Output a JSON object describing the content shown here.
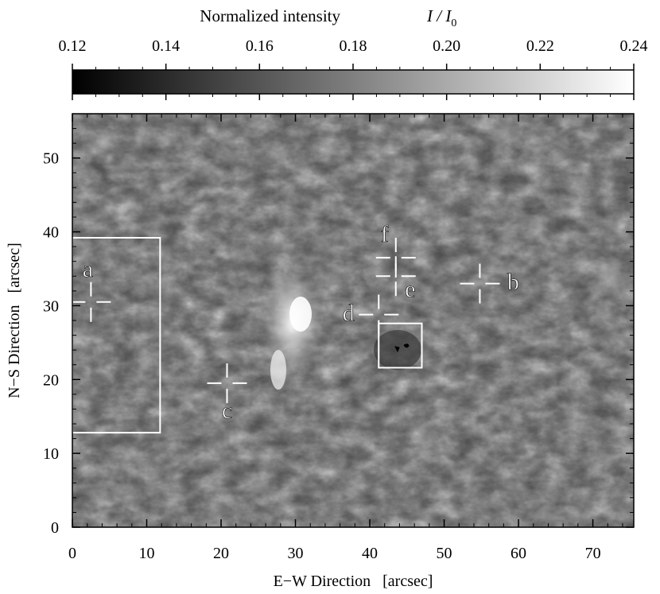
{
  "colorbar": {
    "title": "Normalized intensity",
    "title_symbol_main": "I / I",
    "title_symbol_sub": "0",
    "ticks": [
      "0.12",
      "0.14",
      "0.16",
      "0.18",
      "0.20",
      "0.22",
      "0.24"
    ],
    "range": [
      0.12,
      0.24
    ],
    "colormap": "grayscale",
    "low_color": "#000000",
    "high_color": "#ffffff"
  },
  "image": {
    "xlabel": "E−W Direction   [arcsec]",
    "ylabel": "N−S Direction   [arcsec]",
    "xlim": [
      0,
      75.5
    ],
    "ylim": [
      0,
      56
    ],
    "xticks": [
      "0",
      "10",
      "20",
      "30",
      "40",
      "50",
      "60",
      "70"
    ],
    "yticks": [
      "0",
      "10",
      "20",
      "30",
      "40",
      "50"
    ],
    "markers": [
      {
        "id": "a",
        "label": "a",
        "x": 2.5,
        "y": 30.5
      },
      {
        "id": "b",
        "label": "b",
        "x": 54.8,
        "y": 33
      },
      {
        "id": "c",
        "label": "c",
        "x": 20.8,
        "y": 19.5
      },
      {
        "id": "d",
        "label": "d",
        "x": 41.2,
        "y": 28.8
      },
      {
        "id": "e",
        "label": "e",
        "x": 43.5,
        "y": 34
      },
      {
        "id": "f",
        "label": "f",
        "x": 43.5,
        "y": 36.5
      }
    ],
    "boxes": [
      {
        "id": "box-left",
        "x0": 0,
        "x1": 11.8,
        "y0": 12.8,
        "y1": 39.2
      },
      {
        "id": "box-center",
        "x0": 41.2,
        "x1": 47,
        "y0": 21.6,
        "y1": 27.6
      }
    ],
    "marker_color": "#ffffff",
    "background_style": "grayscale chromospheric intensity map with fibrils around a bright plage near x≈30"
  }
}
